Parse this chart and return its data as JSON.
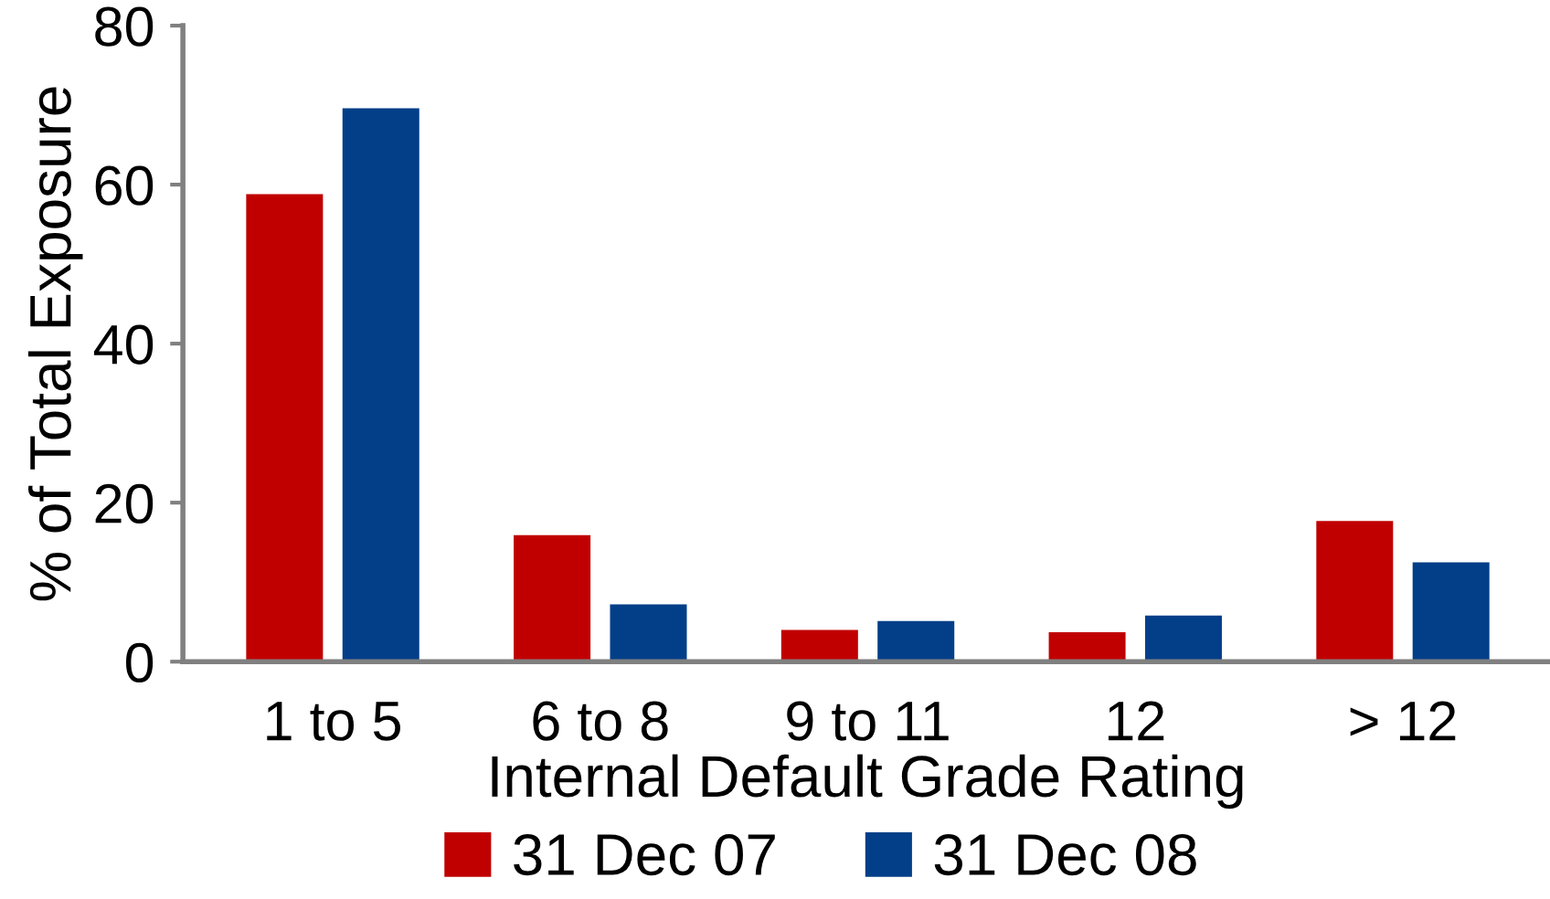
{
  "chart_data": {
    "type": "bar",
    "xlabel": "Internal Default Grade Rating",
    "ylabel": "% of Total Exposure",
    "categories": [
      "1 to 5",
      "6 to 8",
      "9 to 11",
      "12",
      "> 12"
    ],
    "series": [
      {
        "name": "31 Dec 07",
        "color": "#c00000",
        "values": [
          58.8,
          15.9,
          4.0,
          3.7,
          17.7
        ]
      },
      {
        "name": "31 Dec 08",
        "color": "#023f88",
        "values": [
          69.6,
          7.2,
          5.1,
          5.8,
          12.5
        ]
      }
    ],
    "ylim": [
      0,
      80
    ],
    "yticks": [
      0,
      20,
      40,
      60,
      80
    ],
    "grid": false,
    "legend": "bottom"
  }
}
